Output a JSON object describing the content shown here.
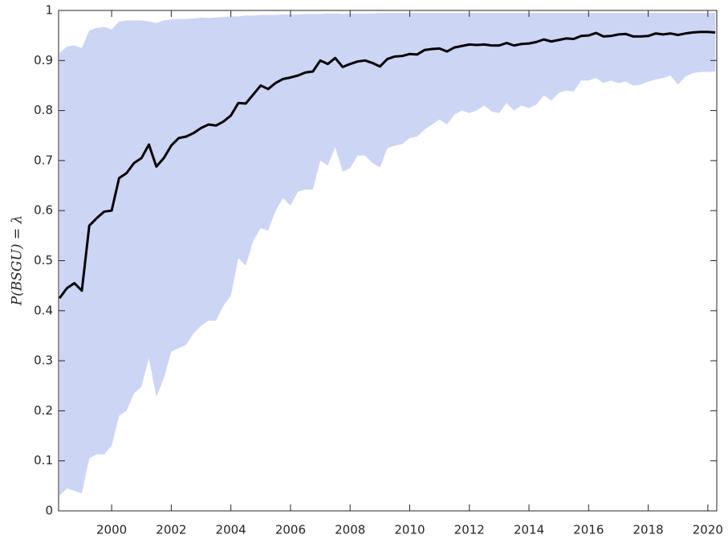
{
  "chart_data": {
    "type": "line",
    "ylabel": "P(BSGU) = λ",
    "x": [
      1998.25,
      1998.5,
      1998.75,
      1999,
      1999.25,
      1999.5,
      1999.75,
      2000,
      2000.25,
      2000.5,
      2000.75,
      2001,
      2001.25,
      2001.5,
      2001.75,
      2002,
      2002.25,
      2002.5,
      2002.75,
      2003,
      2003.25,
      2003.5,
      2003.75,
      2004,
      2004.25,
      2004.5,
      2004.75,
      2005,
      2005.25,
      2005.5,
      2005.75,
      2006,
      2006.25,
      2006.5,
      2006.75,
      2007,
      2007.25,
      2007.5,
      2007.75,
      2008,
      2008.25,
      2008.5,
      2008.75,
      2009,
      2009.25,
      2009.5,
      2009.75,
      2010,
      2010.25,
      2010.5,
      2010.75,
      2011,
      2011.25,
      2011.5,
      2011.75,
      2012,
      2012.25,
      2012.5,
      2012.75,
      2013,
      2013.25,
      2013.5,
      2013.75,
      2014,
      2014.25,
      2014.5,
      2014.75,
      2015,
      2015.25,
      2015.5,
      2015.75,
      2016,
      2016.25,
      2016.5,
      2016.75,
      2017,
      2017.25,
      2017.5,
      2017.75,
      2018,
      2018.25,
      2018.5,
      2018.75,
      2019,
      2019.25,
      2019.5,
      2019.75,
      2020,
      2020.25
    ],
    "values": [
      0.425,
      0.445,
      0.455,
      0.44,
      0.57,
      0.585,
      0.598,
      0.6,
      0.665,
      0.675,
      0.695,
      0.705,
      0.732,
      0.688,
      0.705,
      0.73,
      0.745,
      0.748,
      0.755,
      0.765,
      0.772,
      0.77,
      0.778,
      0.79,
      0.815,
      0.814,
      0.832,
      0.85,
      0.843,
      0.855,
      0.863,
      0.866,
      0.87,
      0.876,
      0.878,
      0.9,
      0.893,
      0.905,
      0.887,
      0.893,
      0.898,
      0.9,
      0.895,
      0.888,
      0.903,
      0.908,
      0.909,
      0.913,
      0.912,
      0.921,
      0.923,
      0.924,
      0.918,
      0.926,
      0.929,
      0.932,
      0.931,
      0.932,
      0.93,
      0.93,
      0.935,
      0.93,
      0.933,
      0.934,
      0.937,
      0.942,
      0.938,
      0.941,
      0.944,
      0.943,
      0.949,
      0.95,
      0.955,
      0.948,
      0.949,
      0.952,
      0.953,
      0.948,
      0.948,
      0.949,
      0.954,
      0.952,
      0.954,
      0.951,
      0.954,
      0.956,
      0.957,
      0.957,
      0.956
    ],
    "color": "#000000",
    "band": {
      "color": "#cdd5f5",
      "upper": [
        0.915,
        0.928,
        0.93,
        0.925,
        0.96,
        0.965,
        0.967,
        0.962,
        0.978,
        0.98,
        0.98,
        0.98,
        0.978,
        0.975,
        0.98,
        0.982,
        0.983,
        0.983,
        0.984,
        0.986,
        0.985,
        0.986,
        0.987,
        0.988,
        0.988,
        0.99,
        0.99,
        0.991,
        0.991,
        0.991,
        0.992,
        0.992,
        0.992,
        0.993,
        0.993,
        0.993,
        0.994,
        0.994,
        0.993,
        0.994,
        0.994,
        0.994,
        0.994,
        0.995,
        0.995,
        0.995,
        0.995,
        0.995,
        0.995,
        0.995,
        0.995,
        0.995,
        0.995,
        0.995,
        0.995,
        0.995,
        0.995,
        0.995,
        0.995,
        0.995,
        0.995,
        0.995,
        0.995,
        0.995,
        0.995,
        0.995,
        0.995,
        0.995,
        0.995,
        0.995,
        0.995,
        0.995,
        0.995,
        0.995,
        0.995,
        0.995,
        0.995,
        0.995,
        0.995,
        0.995,
        0.995,
        0.995,
        0.995,
        0.995,
        0.995,
        0.995,
        0.995,
        0.995,
        0.995
      ],
      "lower": [
        0.03,
        0.045,
        0.04,
        0.035,
        0.105,
        0.113,
        0.113,
        0.13,
        0.19,
        0.2,
        0.235,
        0.248,
        0.305,
        0.228,
        0.265,
        0.318,
        0.325,
        0.332,
        0.355,
        0.37,
        0.38,
        0.38,
        0.41,
        0.43,
        0.505,
        0.49,
        0.54,
        0.565,
        0.56,
        0.6,
        0.625,
        0.61,
        0.638,
        0.642,
        0.642,
        0.7,
        0.69,
        0.727,
        0.678,
        0.685,
        0.71,
        0.71,
        0.695,
        0.686,
        0.725,
        0.73,
        0.733,
        0.745,
        0.748,
        0.762,
        0.772,
        0.782,
        0.772,
        0.792,
        0.8,
        0.795,
        0.8,
        0.81,
        0.798,
        0.795,
        0.815,
        0.8,
        0.81,
        0.805,
        0.812,
        0.83,
        0.82,
        0.835,
        0.84,
        0.838,
        0.86,
        0.86,
        0.865,
        0.855,
        0.86,
        0.855,
        0.858,
        0.85,
        0.852,
        0.858,
        0.862,
        0.865,
        0.87,
        0.852,
        0.868,
        0.875,
        0.877,
        0.877,
        0.878
      ]
    },
    "xlim": [
      1998.22,
      2020.3
    ],
    "ylim": [
      0,
      1
    ],
    "xticks": [
      2000,
      2002,
      2004,
      2006,
      2008,
      2010,
      2012,
      2014,
      2016,
      2018,
      2020
    ],
    "yticks": [
      0,
      0.1,
      0.2,
      0.3,
      0.4,
      0.5,
      0.6,
      0.7,
      0.8,
      0.9,
      1
    ],
    "grid": false
  }
}
